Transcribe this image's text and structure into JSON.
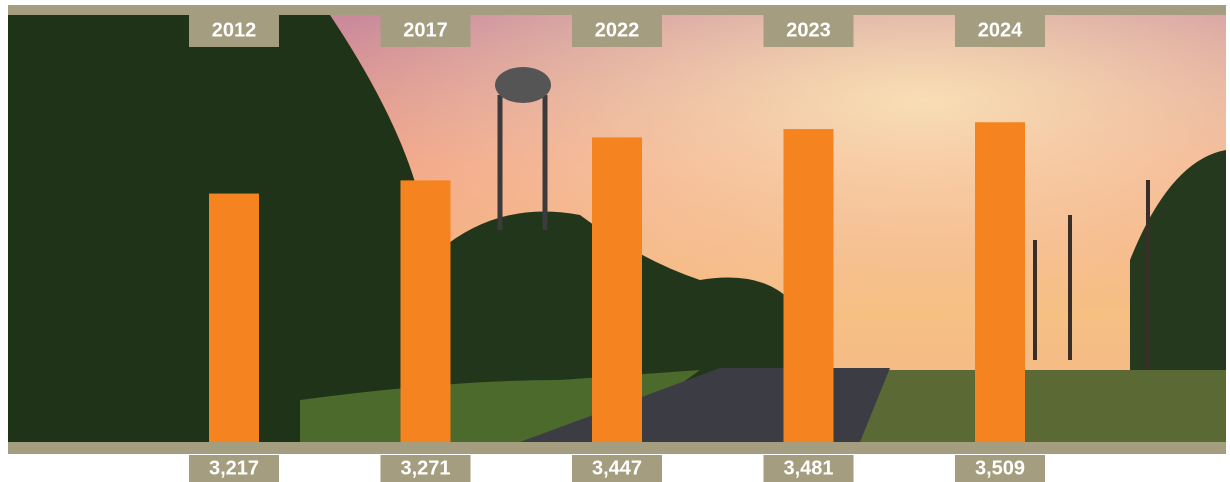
{
  "chart_data": {
    "type": "bar",
    "categories": [
      "2012",
      "2017",
      "2022",
      "2023",
      "2024"
    ],
    "values": [
      3217,
      3271,
      3447,
      3481,
      3509
    ],
    "value_labels": [
      "3,217",
      "3,271",
      "3,447",
      "3,481",
      "3,509"
    ],
    "color": "#f5831f",
    "ylim": [
      2200,
      3600
    ]
  }
}
